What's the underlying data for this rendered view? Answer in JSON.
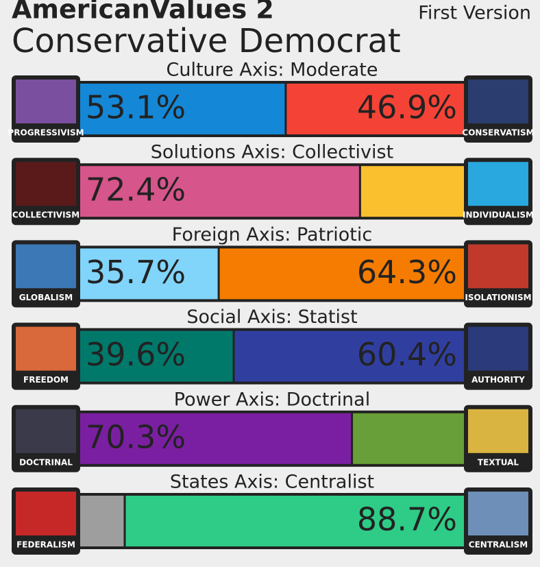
{
  "header": {
    "title": "AmericanValues 2",
    "subtitle": "Conservative Democrat",
    "version": "First Version"
  },
  "xlim": [
    0,
    100
  ],
  "axes": [
    {
      "title": "Culture Axis: Moderate",
      "left": {
        "name": "PROGRESSIVISM",
        "value": 53.1,
        "label": "53.1%",
        "color": "#1487d6"
      },
      "right": {
        "name": "CONSERVATISM",
        "value": 46.9,
        "label": "46.9%",
        "color": "#f44336"
      }
    },
    {
      "title": "Solutions Axis: Collectivist",
      "left": {
        "name": "COLLECTIVISM",
        "value": 72.4,
        "label": "72.4%",
        "color": "#d6558a"
      },
      "right": {
        "name": "INDIVIDUALISM",
        "value": 27.6,
        "color": "#fbc02d"
      }
    },
    {
      "title": "Foreign Axis: Patriotic",
      "left": {
        "name": "GLOBALISM",
        "value": 35.7,
        "label": "35.7%",
        "color": "#81d4fa"
      },
      "right": {
        "name": "ISOLATIONISM",
        "value": 64.3,
        "label": "64.3%",
        "color": "#f57c00"
      }
    },
    {
      "title": "Social Axis: Statist",
      "left": {
        "name": "FREEDOM",
        "value": 39.6,
        "label": "39.6%",
        "color": "#00796b"
      },
      "right": {
        "name": "AUTHORITY",
        "value": 60.4,
        "label": "60.4%",
        "color": "#303f9f"
      }
    },
    {
      "title": "Power Axis: Doctrinal",
      "left": {
        "name": "DOCTRINAL",
        "value": 70.3,
        "label": "70.3%",
        "color": "#7b1fa2"
      },
      "right": {
        "name": "TEXTUAL",
        "value": 29.7,
        "color": "#689f38"
      }
    },
    {
      "title": "States Axis: Centralist",
      "left": {
        "name": "FEDERALISM",
        "value": 11.3,
        "color": "#9e9e9e"
      },
      "right": {
        "name": "CENTRALISM",
        "value": 88.7,
        "label": "88.7%",
        "color": "#2ecc87"
      }
    }
  ]
}
